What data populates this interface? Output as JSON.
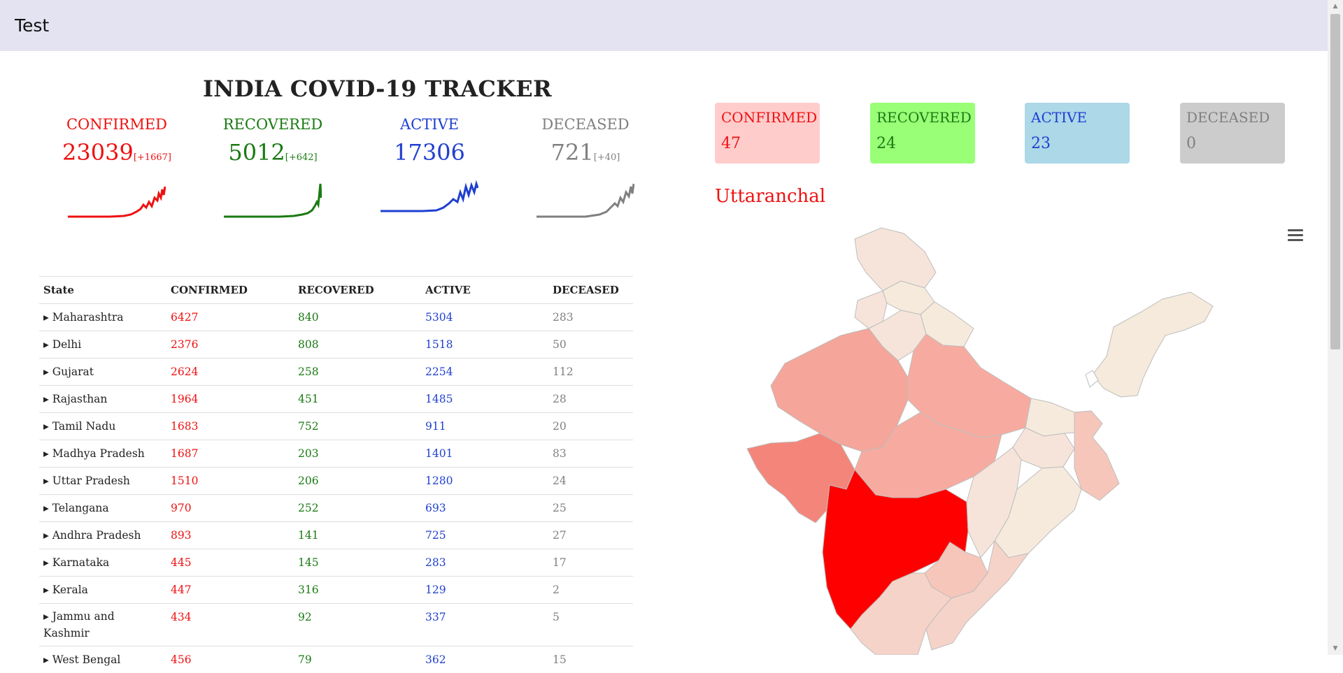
{
  "app": {
    "title": "Test"
  },
  "header": {
    "title": "INDIA COVID-19 TRACKER"
  },
  "summary": {
    "confirmed": {
      "label": "CONFIRMED",
      "value": "23039",
      "delta": "[+1667]"
    },
    "recovered": {
      "label": "RECOVERED",
      "value": "5012",
      "delta": "[+642]"
    },
    "active": {
      "label": "ACTIVE",
      "value": "17306"
    },
    "deceased": {
      "label": "DECEASED",
      "value": "721",
      "delta": "[+40]"
    }
  },
  "table": {
    "headers": [
      "State",
      "CONFIRMED",
      "RECOVERED",
      "ACTIVE",
      "DECEASED"
    ],
    "rows": [
      {
        "state": "▸ Maharashtra",
        "confirmed": "6427",
        "recovered": "840",
        "active": "5304",
        "deceased": "283"
      },
      {
        "state": "▸ Delhi",
        "confirmed": "2376",
        "recovered": "808",
        "active": "1518",
        "deceased": "50"
      },
      {
        "state": "▸ Gujarat",
        "confirmed": "2624",
        "recovered": "258",
        "active": "2254",
        "deceased": "112"
      },
      {
        "state": "▸ Rajasthan",
        "confirmed": "1964",
        "recovered": "451",
        "active": "1485",
        "deceased": "28"
      },
      {
        "state": "▸ Tamil Nadu",
        "confirmed": "1683",
        "recovered": "752",
        "active": "911",
        "deceased": "20"
      },
      {
        "state": "▸ Madhya Pradesh",
        "confirmed": "1687",
        "recovered": "203",
        "active": "1401",
        "deceased": "83"
      },
      {
        "state": "▸ Uttar Pradesh",
        "confirmed": "1510",
        "recovered": "206",
        "active": "1280",
        "deceased": "24"
      },
      {
        "state": "▸ Telangana",
        "confirmed": "970",
        "recovered": "252",
        "active": "693",
        "deceased": "25"
      },
      {
        "state": "▸ Andhra Pradesh",
        "confirmed": "893",
        "recovered": "141",
        "active": "725",
        "deceased": "27"
      },
      {
        "state": "▸ Karnataka",
        "confirmed": "445",
        "recovered": "145",
        "active": "283",
        "deceased": "17"
      },
      {
        "state": "▸ Kerala",
        "confirmed": "447",
        "recovered": "316",
        "active": "129",
        "deceased": "2"
      },
      {
        "state": "▸ Jammu and Kashmir",
        "confirmed": "434",
        "recovered": "92",
        "active": "337",
        "deceased": "5"
      },
      {
        "state": "▸ West Bengal",
        "confirmed": "456",
        "recovered": "79",
        "active": "362",
        "deceased": "15"
      }
    ]
  },
  "selected_region": {
    "name": "Uttaranchal",
    "cards": [
      {
        "label": "CONFIRMED",
        "value": "47"
      },
      {
        "label": "RECOVERED",
        "value": "24"
      },
      {
        "label": "ACTIVE",
        "value": "23"
      },
      {
        "label": "DECEASED",
        "value": "0"
      }
    ]
  },
  "icons": {
    "menu": "hamburger-menu-icon",
    "expand": "triangle-right-icon"
  },
  "colors": {
    "confirmed": "#ee1111",
    "recovered": "#1a7a12",
    "active": "#1f3fd0",
    "deceased": "#808080",
    "card_confirmed_bg": "#ffcccc",
    "card_recovered_bg": "#99ff77",
    "card_active_bg": "#acd8e8",
    "card_deceased_bg": "#cccccc",
    "header_bg": "#e3e3f2"
  }
}
